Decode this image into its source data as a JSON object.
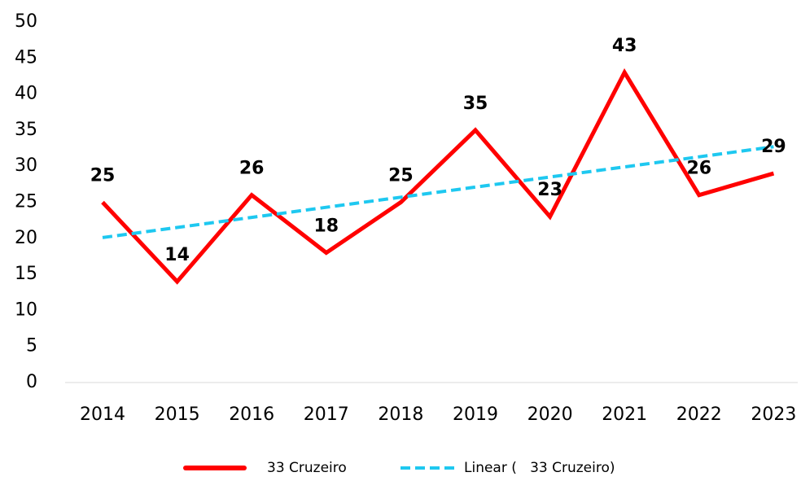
{
  "chart_data": {
    "type": "line",
    "categories": [
      "2014",
      "2015",
      "2016",
      "2017",
      "2018",
      "2019",
      "2020",
      "2021",
      "2022",
      "2023"
    ],
    "series": [
      {
        "name": "33 Cruzeiro",
        "color": "#ff0000",
        "values": [
          25,
          14,
          26,
          18,
          25,
          35,
          23,
          43,
          26,
          29
        ]
      },
      {
        "name": "Linear (   33 Cruzeiro)",
        "color": "#1ec8f0",
        "dashed": true,
        "values": [
          20.1,
          21.5,
          22.9,
          24.3,
          25.7,
          27.1,
          28.5,
          29.9,
          31.3,
          32.7
        ]
      }
    ],
    "data_labels_series": 0,
    "ylim": [
      0,
      50
    ],
    "yticks": [
      0,
      5,
      10,
      15,
      20,
      25,
      30,
      35,
      40,
      45,
      50
    ],
    "grid": false,
    "legend": "bottom"
  }
}
